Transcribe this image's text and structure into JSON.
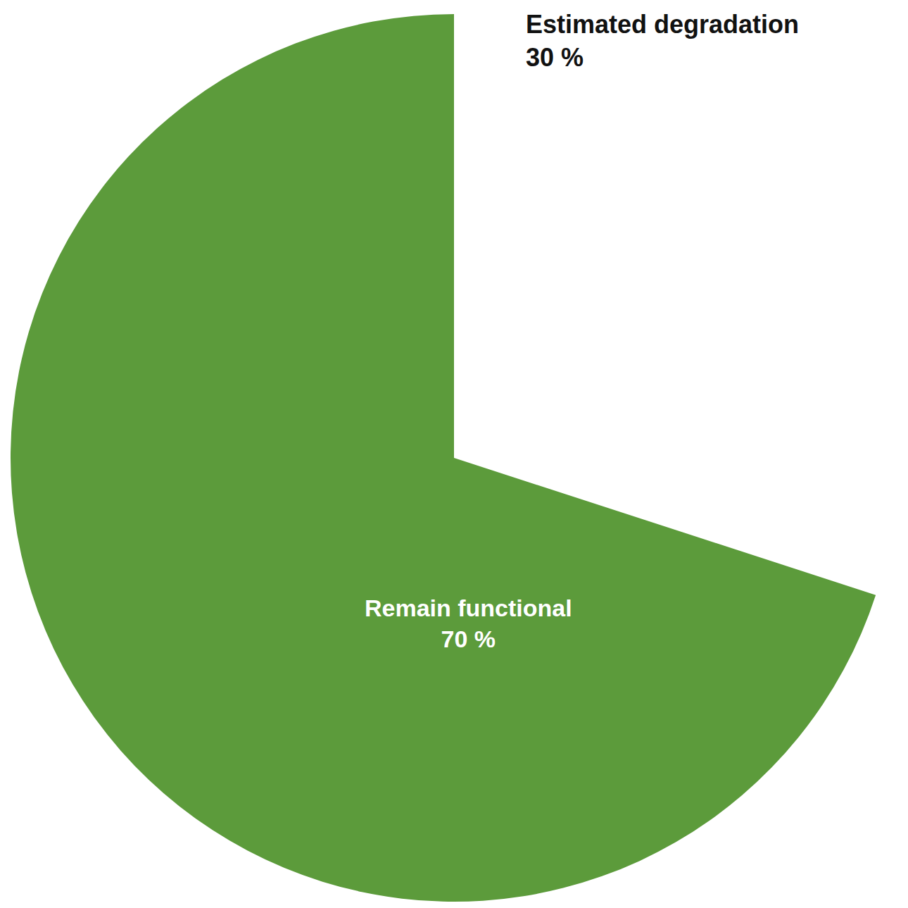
{
  "chart_data": {
    "type": "pie",
    "labels": [
      "Estimated degradation",
      "Remain functional"
    ],
    "values": [
      30,
      70
    ],
    "value_labels": [
      "30 %",
      "70 %"
    ],
    "colors": [
      "#ffffff",
      "#5c9b3b"
    ],
    "data_labels": true
  }
}
